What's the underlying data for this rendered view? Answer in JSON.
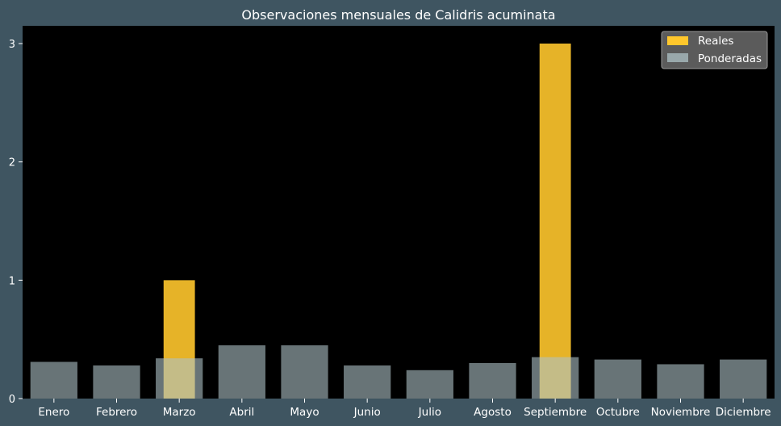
{
  "colors": {
    "background": "#3f5561",
    "plot_background": "#000000",
    "reales": "#ffc72c",
    "ponderadas": "#aec1c6",
    "text": "#ffffff"
  },
  "chart_data": {
    "type": "bar",
    "title": "Observaciones mensuales de Calidris acuminata",
    "xlabel": "",
    "ylabel": "",
    "ylim": [
      0,
      3.15
    ],
    "yticks": [
      0,
      1,
      2,
      3
    ],
    "categories": [
      "Enero",
      "Febrero",
      "Marzo",
      "Abril",
      "Mayo",
      "Junio",
      "Julio",
      "Agosto",
      "Septiembre",
      "Octubre",
      "Noviembre",
      "Diciembre"
    ],
    "series": [
      {
        "name": "Reales",
        "values": [
          0,
          0,
          1,
          0,
          0,
          0,
          0,
          0,
          3,
          0,
          0,
          0
        ]
      },
      {
        "name": "Ponderadas",
        "values": [
          0.31,
          0.28,
          0.34,
          0.45,
          0.45,
          0.28,
          0.24,
          0.3,
          0.35,
          0.33,
          0.29,
          0.33
        ]
      }
    ],
    "legend": "top-right",
    "grid": false
  }
}
